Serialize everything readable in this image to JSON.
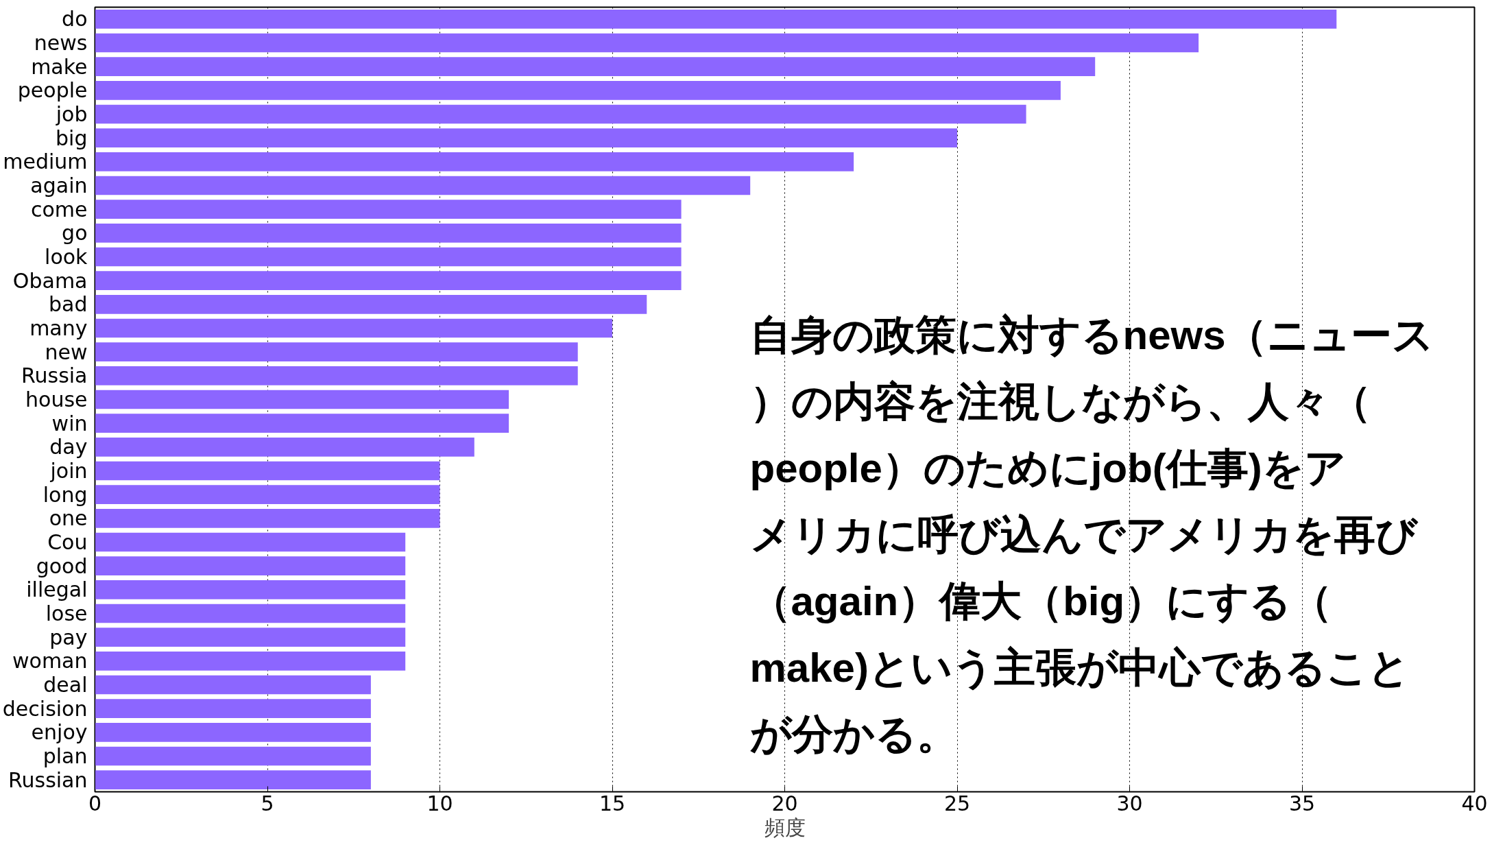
{
  "chart_data": {
    "type": "bar",
    "orientation": "horizontal",
    "categories": [
      "do",
      "news",
      "make",
      "people",
      "job",
      "big",
      "medium",
      "again",
      "come",
      "go",
      "look",
      "Obama",
      "bad",
      "many",
      "new",
      "Russia",
      "house",
      "win",
      "day",
      "join",
      "long",
      "one",
      "Cou",
      "good",
      "illegal",
      "lose",
      "pay",
      "woman",
      "deal",
      "decision",
      "enjoy",
      "plan",
      "Russian"
    ],
    "values": [
      36,
      32,
      29,
      28,
      27,
      25,
      22,
      19,
      17,
      17,
      17,
      17,
      16,
      15,
      14,
      14,
      12,
      12,
      11,
      10,
      10,
      10,
      9,
      9,
      9,
      9,
      9,
      9,
      8,
      8,
      8,
      8,
      8
    ],
    "color": "#8c66ff",
    "xlim": [
      0,
      40
    ],
    "xticks": [
      0,
      5,
      10,
      15,
      20,
      25,
      30,
      35,
      40
    ],
    "xlabel": "頻度",
    "grid": "x",
    "annotations": [
      "自身の政策に対するnews（ニュース）の内容を注視しながら、人々（people）のためにjob(仕事)をアメリカに呼び込んでアメリカを再び（again）偉大（big）にする（make)という主張が中心であることが分かる。"
    ]
  }
}
